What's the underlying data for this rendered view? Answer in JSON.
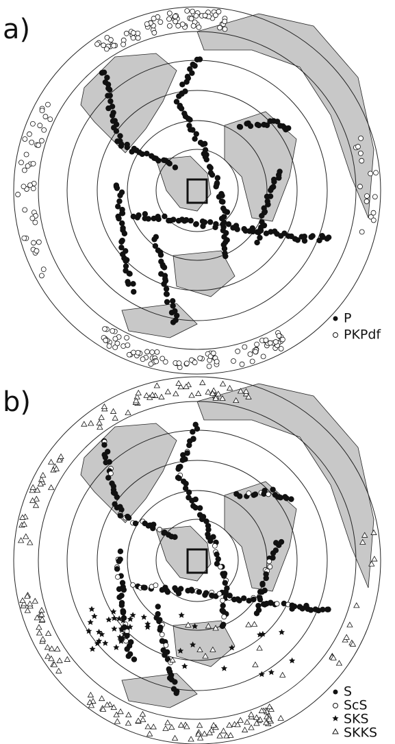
{
  "panels": [
    {
      "label": "a)",
      "legend": [
        "P",
        "PKPdf"
      ]
    },
    {
      "label": "b)",
      "legend": [
        "S",
        "ScS",
        "SKS",
        "SKKS"
      ]
    }
  ]
}
